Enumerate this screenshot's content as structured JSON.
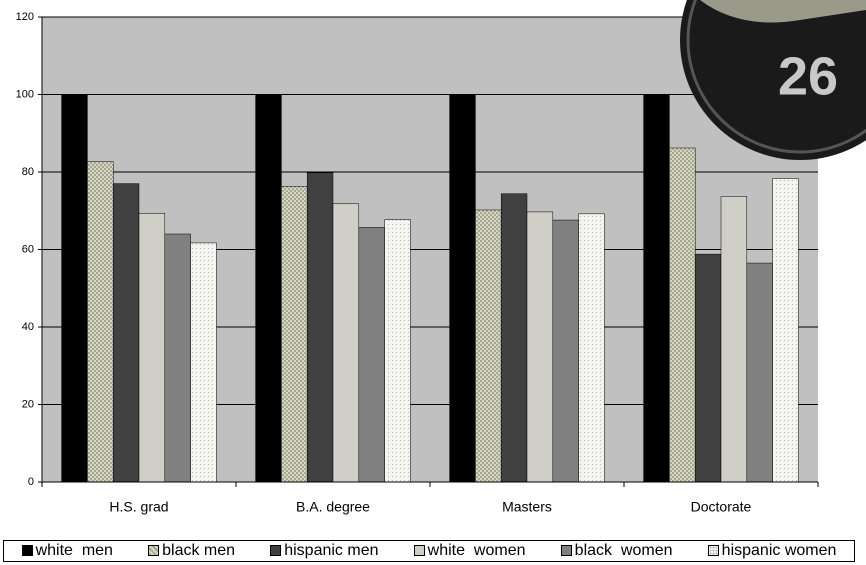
{
  "chart_data": {
    "type": "bar",
    "categories": [
      "H.S. grad",
      "B.A. degree",
      "Masters",
      "Doctorate"
    ],
    "series": [
      {
        "name": "white  men",
        "color": "#000000",
        "values": [
          100,
          100,
          100,
          100
        ]
      },
      {
        "name": "black men",
        "color": "#d6d6c4",
        "values": [
          82.7,
          76.3,
          70.2,
          86.2
        ]
      },
      {
        "name": "hispanic men",
        "color": "#404040",
        "values": [
          77,
          79.8,
          74.4,
          58.8
        ]
      },
      {
        "name": "white  women",
        "color": "#cfcfc8",
        "values": [
          69.3,
          71.8,
          69.7,
          73.7
        ]
      },
      {
        "name": "black  women",
        "color": "#808080",
        "values": [
          64,
          65.7,
          67.6,
          56.5
        ]
      },
      {
        "name": "hispanic women",
        "color": "#f4f4f0",
        "values": [
          61.7,
          67.7,
          69.2,
          78.3
        ]
      }
    ],
    "ylim": [
      0,
      120
    ],
    "yticks": [
      0,
      20,
      40,
      60,
      80,
      100,
      120
    ],
    "grid": true,
    "legend": "bottom",
    "plot_background": "#c0c0c0",
    "annotations": [
      "26"
    ]
  }
}
